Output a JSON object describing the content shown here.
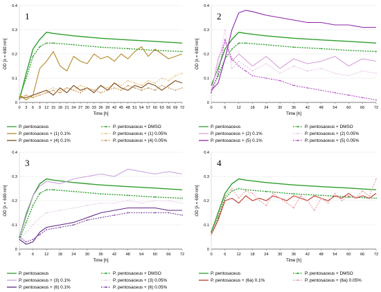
{
  "figure": {
    "axis": {
      "xlabel": "Time [h]",
      "ylabel": "OD [λ = 600 nm]"
    },
    "colors": {
      "control": "#2e9e2e",
      "dmso": "#2e9e2e",
      "panel1_a": "#b58a2a",
      "panel1_b": "#e8c07a",
      "panel1_c": "#7a4a1a",
      "panel1_d": "#c89050",
      "panel2_a": "#d9a0d9",
      "panel2_b": "#e8c4e8",
      "panel2_c": "#8e24aa",
      "panel2_d": "#b04cc0",
      "panel3_a": "#c9a0e0",
      "panel3_b": "#e6cce8",
      "panel3_c": "#5e2a84",
      "panel3_d": "#7a3ea0",
      "panel4_a": "#c0392b",
      "panel4_b": "#e89aa0"
    }
  },
  "chart_data": [
    {
      "type": "line",
      "panel_label": "1",
      "xlabel": "Time [h]",
      "ylabel": "OD [λ = 600 nm]",
      "xticks": [
        0,
        3,
        6,
        9,
        12,
        15,
        18,
        21,
        24,
        27,
        30,
        33,
        36,
        39,
        42,
        45,
        48,
        51,
        54,
        57,
        60,
        63,
        66,
        69,
        72
      ],
      "yticks": [
        0,
        0.1,
        0.2,
        0.3,
        0.4
      ],
      "xlim": [
        0,
        72
      ],
      "ylim": [
        0,
        0.4
      ],
      "legend_position": "bottom",
      "series": [
        {
          "name": "P. pentosaceus",
          "color_key": "control",
          "style": "solid",
          "x": [
            0,
            3,
            6,
            9,
            12,
            15,
            24,
            36,
            48,
            60,
            72
          ],
          "y": [
            0.01,
            0.12,
            0.22,
            0.26,
            0.29,
            0.285,
            0.275,
            0.265,
            0.258,
            0.252,
            0.245
          ]
        },
        {
          "name": "P. pentosaceus + DMSO",
          "color_key": "dmso",
          "style": "dashed",
          "x": [
            0,
            3,
            6,
            9,
            12,
            15,
            24,
            36,
            48,
            60,
            72
          ],
          "y": [
            0.02,
            0.1,
            0.19,
            0.23,
            0.245,
            0.245,
            0.238,
            0.228,
            0.222,
            0.215,
            0.21
          ]
        },
        {
          "name": "P. pentosaceus + (1) 0.1%",
          "color_key": "panel1_a",
          "style": "solid",
          "x": [
            0,
            3,
            6,
            9,
            12,
            15,
            18,
            21,
            24,
            27,
            30,
            33,
            36,
            39,
            42,
            45,
            48,
            51,
            54,
            57,
            60,
            63,
            66,
            69,
            72
          ],
          "y": [
            0.03,
            0.01,
            0.03,
            0.14,
            0.17,
            0.21,
            0.15,
            0.13,
            0.19,
            0.17,
            0.16,
            0.2,
            0.18,
            0.19,
            0.17,
            0.2,
            0.18,
            0.21,
            0.23,
            0.19,
            0.22,
            0.2,
            0.18,
            0.19,
            0.2
          ]
        },
        {
          "name": "P. pentosaceus + (1) 0.05%",
          "color_key": "panel1_b",
          "style": "dashed",
          "x": [
            0,
            3,
            6,
            9,
            12,
            15,
            18,
            21,
            24,
            27,
            30,
            33,
            36,
            39,
            42,
            45,
            48,
            51,
            54,
            57,
            60,
            63,
            66,
            69,
            72
          ],
          "y": [
            0.03,
            0.02,
            0.02,
            0.04,
            0.05,
            0.06,
            0.05,
            0.06,
            0.05,
            0.07,
            0.06,
            0.05,
            0.07,
            0.06,
            0.08,
            0.07,
            0.09,
            0.08,
            0.07,
            0.09,
            0.08,
            0.1,
            0.09,
            0.11,
            0.12
          ]
        },
        {
          "name": "P. pentosaceus + (4) 0.1%",
          "color_key": "panel1_c",
          "style": "solid",
          "x": [
            0,
            3,
            6,
            9,
            12,
            15,
            18,
            21,
            24,
            27,
            30,
            33,
            36,
            39,
            42,
            45,
            48,
            51,
            54,
            57,
            60,
            63,
            66,
            69,
            72
          ],
          "y": [
            0.02,
            0.02,
            0.03,
            0.04,
            0.05,
            0.03,
            0.06,
            0.04,
            0.07,
            0.05,
            0.06,
            0.04,
            0.07,
            0.05,
            0.08,
            0.06,
            0.05,
            0.07,
            0.06,
            0.08,
            0.07,
            0.05,
            0.07,
            0.09,
            0.08
          ]
        },
        {
          "name": "P. pentosaceus + (4) 0.05%",
          "color_key": "panel1_d",
          "style": "dashed",
          "x": [
            0,
            3,
            6,
            9,
            12,
            15,
            18,
            21,
            24,
            27,
            30,
            33,
            36,
            39,
            42,
            45,
            48,
            51,
            54,
            57,
            60,
            63,
            66,
            69,
            72
          ],
          "y": [
            0.02,
            0.03,
            0.02,
            0.03,
            0.04,
            0.05,
            0.04,
            0.06,
            0.05,
            0.04,
            0.06,
            0.05,
            0.04,
            0.05,
            0.06,
            0.05,
            0.07,
            0.06,
            0.05,
            0.06,
            0.05,
            0.07,
            0.06,
            0.05,
            0.06
          ]
        }
      ]
    },
    {
      "type": "line",
      "panel_label": "2",
      "xlabel": "Time [h]",
      "ylabel": "OD [λ = 600 nm]",
      "xticks": [
        0,
        6,
        12,
        18,
        24,
        30,
        36,
        42,
        48,
        54,
        60,
        66,
        72
      ],
      "yticks": [
        0,
        0.1,
        0.2,
        0.3,
        0.4
      ],
      "xlim": [
        0,
        72
      ],
      "ylim": [
        0,
        0.4
      ],
      "legend_position": "bottom",
      "series": [
        {
          "name": "P. pentosaceus",
          "color_key": "control",
          "style": "solid",
          "x": [
            0,
            3,
            6,
            9,
            12,
            15,
            24,
            36,
            48,
            60,
            72
          ],
          "y": [
            0.07,
            0.14,
            0.22,
            0.26,
            0.29,
            0.285,
            0.275,
            0.265,
            0.258,
            0.252,
            0.245
          ]
        },
        {
          "name": "P. pentosaceus + DMSO",
          "color_key": "dmso",
          "style": "dashed",
          "x": [
            0,
            3,
            6,
            9,
            12,
            15,
            24,
            36,
            48,
            60,
            72
          ],
          "y": [
            0.05,
            0.11,
            0.18,
            0.22,
            0.245,
            0.245,
            0.238,
            0.228,
            0.222,
            0.215,
            0.21
          ]
        },
        {
          "name": "P. pentosaceus + (2) 0.1%",
          "color_key": "panel2_a",
          "style": "solid",
          "x": [
            0,
            3,
            6,
            9,
            12,
            18,
            24,
            30,
            36,
            42,
            48,
            54,
            60,
            66,
            72
          ],
          "y": [
            0.04,
            0.18,
            0.25,
            0.17,
            0.2,
            0.15,
            0.19,
            0.14,
            0.18,
            0.16,
            0.17,
            0.19,
            0.15,
            0.18,
            0.17
          ]
        },
        {
          "name": "P. pentosaceus + (2) 0.05%",
          "color_key": "panel2_b",
          "style": "dashed",
          "x": [
            0,
            3,
            6,
            9,
            12,
            18,
            24,
            30,
            36,
            42,
            48,
            54,
            60,
            66,
            72
          ],
          "y": [
            0.05,
            0.15,
            0.3,
            0.14,
            0.17,
            0.13,
            0.16,
            0.12,
            0.15,
            0.13,
            0.14,
            0.12,
            0.11,
            0.13,
            0.12
          ]
        },
        {
          "name": "P. pentosaceus + (5) 0.1%",
          "color_key": "panel2_c",
          "style": "solid",
          "x": [
            0,
            3,
            6,
            9,
            12,
            15,
            18,
            24,
            30,
            36,
            42,
            48,
            54,
            60,
            66,
            72
          ],
          "y": [
            0.05,
            0.08,
            0.18,
            0.3,
            0.37,
            0.38,
            0.375,
            0.36,
            0.35,
            0.34,
            0.33,
            0.33,
            0.32,
            0.32,
            0.31,
            0.31
          ]
        },
        {
          "name": "P. pentosaceus + (5) 0.05%",
          "color_key": "panel2_d",
          "style": "dashed",
          "x": [
            0,
            3,
            6,
            9,
            12,
            15,
            18,
            24,
            30,
            36,
            42,
            48,
            54,
            60,
            66,
            72
          ],
          "y": [
            0.04,
            0.12,
            0.26,
            0.18,
            0.15,
            0.13,
            0.11,
            0.1,
            0.09,
            0.07,
            0.06,
            0.05,
            0.04,
            0.03,
            0.02,
            0.01
          ]
        }
      ]
    },
    {
      "type": "line",
      "panel_label": "3",
      "xlabel": "Time [h]",
      "ylabel": "OD [λ = 600 nm]",
      "xticks": [
        0,
        6,
        12,
        18,
        24,
        30,
        36,
        42,
        48,
        54,
        60,
        66,
        72
      ],
      "yticks": [
        0,
        0.1,
        0.2,
        0.3,
        0.4
      ],
      "xlim": [
        0,
        72
      ],
      "ylim": [
        0,
        0.4
      ],
      "legend_position": "bottom",
      "series": [
        {
          "name": "P. pentosaceus",
          "color_key": "control",
          "style": "solid",
          "x": [
            0,
            3,
            6,
            9,
            12,
            15,
            24,
            36,
            48,
            60,
            72
          ],
          "y": [
            0.05,
            0.14,
            0.22,
            0.27,
            0.29,
            0.285,
            0.275,
            0.265,
            0.258,
            0.252,
            0.245
          ]
        },
        {
          "name": "P. pentosaceus + DMSO",
          "color_key": "dmso",
          "style": "dashed",
          "x": [
            0,
            3,
            6,
            9,
            12,
            15,
            24,
            36,
            48,
            60,
            72
          ],
          "y": [
            0.04,
            0.11,
            0.18,
            0.23,
            0.245,
            0.245,
            0.238,
            0.228,
            0.222,
            0.215,
            0.21
          ]
        },
        {
          "name": "P. pentosaceus + (3) 0.1%",
          "color_key": "panel3_a",
          "style": "solid",
          "x": [
            0,
            3,
            6,
            9,
            12,
            18,
            24,
            30,
            36,
            42,
            48,
            54,
            60,
            66,
            72
          ],
          "y": [
            0.05,
            0.15,
            0.22,
            0.26,
            0.28,
            0.27,
            0.29,
            0.3,
            0.31,
            0.3,
            0.33,
            0.32,
            0.31,
            0.32,
            0.31
          ]
        },
        {
          "name": "P. pentosaceus + (3) 0.05%",
          "color_key": "panel3_b",
          "style": "dashed",
          "x": [
            0,
            3,
            6,
            9,
            12,
            18,
            24,
            30,
            36,
            42,
            48,
            54,
            60,
            66,
            72
          ],
          "y": [
            0.04,
            0.07,
            0.1,
            0.13,
            0.15,
            0.16,
            0.17,
            0.18,
            0.19,
            0.19,
            0.2,
            0.19,
            0.2,
            0.2,
            0.19
          ]
        },
        {
          "name": "P. pentosaceus + (6) 0.1%",
          "color_key": "panel3_c",
          "style": "solid",
          "x": [
            0,
            3,
            6,
            9,
            12,
            18,
            24,
            30,
            36,
            42,
            48,
            54,
            60,
            66,
            72
          ],
          "y": [
            0.04,
            0.02,
            0.03,
            0.07,
            0.09,
            0.1,
            0.11,
            0.13,
            0.15,
            0.16,
            0.17,
            0.17,
            0.17,
            0.16,
            0.16
          ]
        },
        {
          "name": "P. pentosaceus + (6) 0.05%",
          "color_key": "panel3_d",
          "style": "dashed",
          "x": [
            0,
            3,
            6,
            9,
            12,
            18,
            24,
            30,
            36,
            42,
            48,
            54,
            60,
            66,
            72
          ],
          "y": [
            0.05,
            0.03,
            0.04,
            0.06,
            0.08,
            0.09,
            0.1,
            0.12,
            0.13,
            0.14,
            0.15,
            0.15,
            0.15,
            0.15,
            0.14
          ]
        }
      ]
    },
    {
      "type": "line",
      "panel_label": "4",
      "xlabel": "Time [h]",
      "ylabel": "OD [λ = 600 nm]",
      "xticks": [
        0,
        6,
        12,
        18,
        24,
        30,
        36,
        42,
        48,
        54,
        60,
        66,
        72
      ],
      "yticks": [
        0,
        0.1,
        0.2,
        0.3,
        0.4
      ],
      "xlim": [
        0,
        72
      ],
      "ylim": [
        0,
        0.4
      ],
      "legend_position": "bottom",
      "series": [
        {
          "name": "P. pentosaceus",
          "color_key": "control",
          "style": "solid",
          "x": [
            0,
            3,
            6,
            9,
            12,
            15,
            24,
            36,
            48,
            60,
            72
          ],
          "y": [
            0.07,
            0.15,
            0.23,
            0.27,
            0.29,
            0.285,
            0.275,
            0.265,
            0.258,
            0.252,
            0.245
          ]
        },
        {
          "name": "P. pentosaceus + DMSO",
          "color_key": "dmso",
          "style": "dashed",
          "x": [
            0,
            3,
            6,
            9,
            12,
            15,
            24,
            36,
            48,
            60,
            72
          ],
          "y": [
            0.07,
            0.13,
            0.21,
            0.24,
            0.25,
            0.245,
            0.238,
            0.228,
            0.222,
            0.215,
            0.21
          ]
        },
        {
          "name": "P. pentosaceus + (6a) 0.1%",
          "color_key": "panel4_a",
          "style": "solid",
          "x": [
            0,
            3,
            6,
            9,
            12,
            15,
            18,
            21,
            24,
            27,
            30,
            33,
            36,
            39,
            42,
            45,
            48,
            51,
            54,
            57,
            60,
            63,
            66,
            69,
            72
          ],
          "y": [
            0.06,
            0.12,
            0.2,
            0.21,
            0.19,
            0.22,
            0.2,
            0.21,
            0.2,
            0.22,
            0.21,
            0.2,
            0.22,
            0.21,
            0.2,
            0.22,
            0.21,
            0.2,
            0.22,
            0.21,
            0.23,
            0.21,
            0.22,
            0.21,
            0.23
          ]
        },
        {
          "name": "P. pentosaceus + (6a) 0.05%",
          "color_key": "panel4_b",
          "style": "dashed",
          "x": [
            0,
            3,
            6,
            9,
            12,
            15,
            18,
            21,
            24,
            27,
            30,
            33,
            36,
            39,
            42,
            45,
            48,
            51,
            54,
            57,
            60,
            63,
            66,
            69,
            72
          ],
          "y": [
            0.06,
            0.14,
            0.22,
            0.25,
            0.21,
            0.24,
            0.23,
            0.2,
            0.18,
            0.23,
            0.21,
            0.19,
            0.17,
            0.22,
            0.2,
            0.16,
            0.21,
            0.19,
            0.23,
            0.2,
            0.22,
            0.21,
            0.24,
            0.22,
            0.29
          ]
        }
      ]
    }
  ]
}
